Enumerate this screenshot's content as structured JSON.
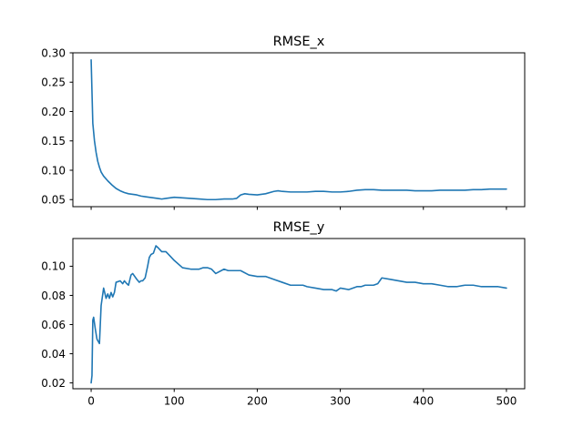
{
  "chart_data": [
    {
      "type": "line",
      "title": "RMSE_x",
      "xlabel": "",
      "ylabel": "",
      "xlim": [
        -22,
        522
      ],
      "ylim": [
        0.038,
        0.3
      ],
      "yticks": [
        0.05,
        0.1,
        0.15,
        0.2,
        0.25,
        0.3
      ],
      "ytick_labels": [
        "0.05",
        "0.10",
        "0.15",
        "0.20",
        "0.25",
        "0.30"
      ],
      "xticks": [
        0,
        100,
        200,
        300,
        400,
        500
      ],
      "xtick_labels_visible": false,
      "grid": false,
      "series": [
        {
          "color": "#1f77b4",
          "x": [
            0,
            2,
            4,
            6,
            8,
            10,
            12,
            15,
            20,
            25,
            30,
            35,
            40,
            45,
            50,
            55,
            60,
            65,
            70,
            75,
            80,
            85,
            90,
            95,
            100,
            110,
            120,
            130,
            140,
            150,
            160,
            170,
            175,
            180,
            185,
            190,
            200,
            210,
            220,
            225,
            230,
            240,
            250,
            260,
            270,
            280,
            290,
            300,
            310,
            320,
            330,
            340,
            350,
            360,
            370,
            380,
            390,
            400,
            410,
            420,
            430,
            440,
            450,
            460,
            470,
            480,
            490,
            500
          ],
          "y": [
            0.288,
            0.18,
            0.15,
            0.13,
            0.115,
            0.105,
            0.097,
            0.09,
            0.082,
            0.075,
            0.069,
            0.065,
            0.062,
            0.06,
            0.059,
            0.058,
            0.056,
            0.055,
            0.054,
            0.053,
            0.052,
            0.051,
            0.052,
            0.053,
            0.054,
            0.053,
            0.052,
            0.051,
            0.05,
            0.05,
            0.051,
            0.051,
            0.052,
            0.058,
            0.06,
            0.059,
            0.058,
            0.06,
            0.064,
            0.065,
            0.064,
            0.063,
            0.063,
            0.063,
            0.064,
            0.064,
            0.063,
            0.063,
            0.064,
            0.066,
            0.067,
            0.067,
            0.066,
            0.066,
            0.066,
            0.066,
            0.065,
            0.065,
            0.065,
            0.066,
            0.066,
            0.066,
            0.066,
            0.067,
            0.067,
            0.068,
            0.068,
            0.068
          ]
        }
      ]
    },
    {
      "type": "line",
      "title": "RMSE_y",
      "xlabel": "",
      "ylabel": "",
      "xlim": [
        -22,
        522
      ],
      "ylim": [
        0.016,
        0.119
      ],
      "yticks": [
        0.02,
        0.04,
        0.06,
        0.08,
        0.1
      ],
      "ytick_labels": [
        "0.02",
        "0.04",
        "0.06",
        "0.08",
        "0.10"
      ],
      "xticks": [
        0,
        100,
        200,
        300,
        400,
        500
      ],
      "xtick_labels": [
        "0",
        "100",
        "200",
        "300",
        "400",
        "500"
      ],
      "grid": false,
      "series": [
        {
          "color": "#1f77b4",
          "x": [
            0,
            1,
            2,
            3,
            5,
            7,
            9,
            10,
            12,
            15,
            18,
            20,
            22,
            24,
            26,
            28,
            30,
            35,
            38,
            40,
            43,
            45,
            48,
            50,
            55,
            58,
            60,
            62,
            65,
            68,
            70,
            72,
            75,
            78,
            80,
            85,
            90,
            95,
            100,
            110,
            120,
            130,
            135,
            140,
            145,
            150,
            160,
            165,
            170,
            180,
            190,
            200,
            210,
            220,
            230,
            240,
            250,
            255,
            260,
            270,
            280,
            290,
            295,
            300,
            310,
            320,
            325,
            330,
            340,
            345,
            350,
            360,
            370,
            380,
            390,
            400,
            410,
            420,
            430,
            440,
            450,
            460,
            470,
            480,
            490,
            500
          ],
          "y": [
            0.02,
            0.025,
            0.063,
            0.065,
            0.057,
            0.05,
            0.048,
            0.047,
            0.073,
            0.085,
            0.078,
            0.081,
            0.078,
            0.082,
            0.079,
            0.082,
            0.089,
            0.09,
            0.088,
            0.09,
            0.088,
            0.087,
            0.094,
            0.095,
            0.091,
            0.089,
            0.09,
            0.09,
            0.092,
            0.1,
            0.106,
            0.108,
            0.109,
            0.114,
            0.113,
            0.11,
            0.11,
            0.107,
            0.104,
            0.099,
            0.098,
            0.098,
            0.099,
            0.099,
            0.098,
            0.095,
            0.098,
            0.097,
            0.097,
            0.097,
            0.094,
            0.093,
            0.093,
            0.091,
            0.089,
            0.087,
            0.087,
            0.087,
            0.086,
            0.085,
            0.084,
            0.084,
            0.083,
            0.085,
            0.084,
            0.086,
            0.086,
            0.087,
            0.087,
            0.088,
            0.092,
            0.091,
            0.09,
            0.089,
            0.089,
            0.088,
            0.088,
            0.087,
            0.086,
            0.086,
            0.087,
            0.087,
            0.086,
            0.086,
            0.086,
            0.085
          ]
        }
      ]
    }
  ]
}
